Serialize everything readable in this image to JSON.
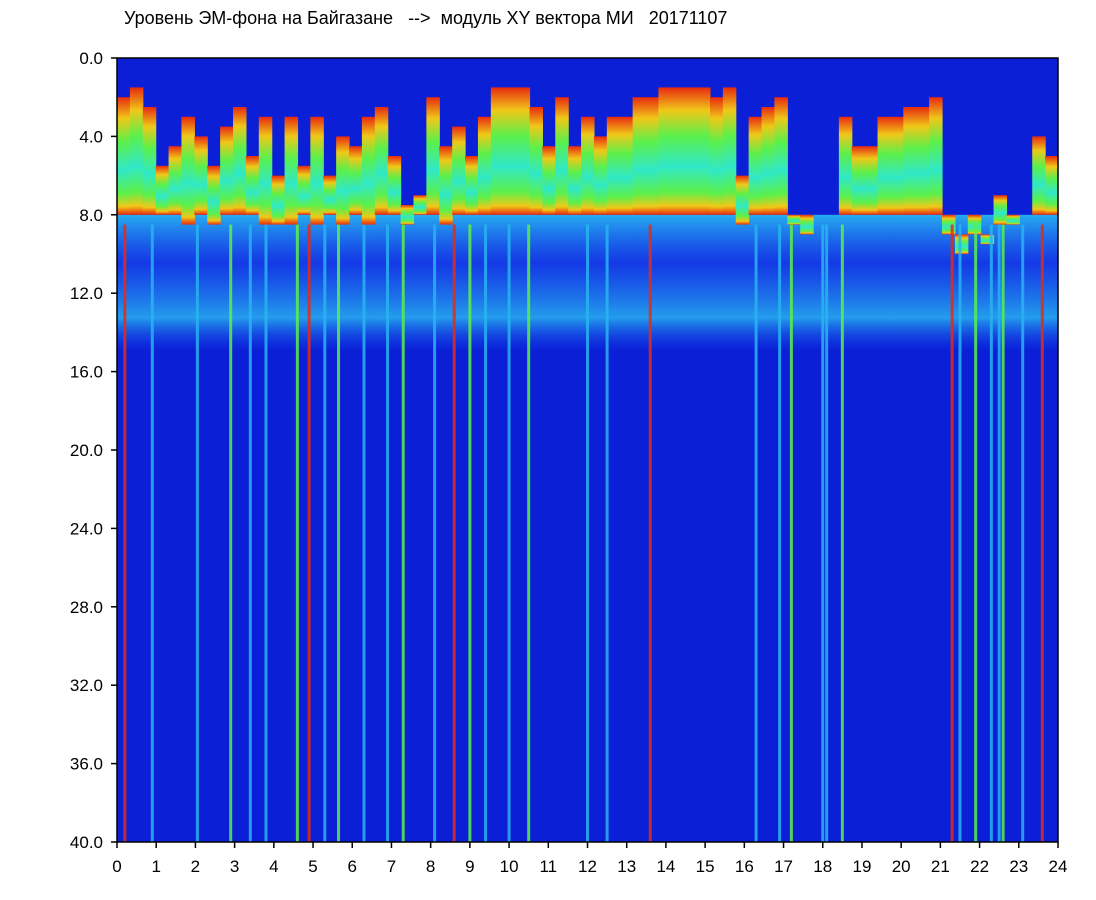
{
  "chart_data": {
    "type": "heatmap",
    "title": "Уровень ЭМ-фона на Байгазане   -->  модуль XY вектора МИ   20171107",
    "xlabel": "",
    "ylabel": "",
    "xlim": [
      0,
      24
    ],
    "ylim": [
      0.0,
      40.0
    ],
    "y_inverted": true,
    "x_ticks": [
      "0",
      "1",
      "2",
      "3",
      "4",
      "5",
      "6",
      "7",
      "8",
      "9",
      "10",
      "11",
      "12",
      "13",
      "14",
      "15",
      "16",
      "17",
      "18",
      "19",
      "20",
      "21",
      "22",
      "23",
      "24"
    ],
    "y_ticks": [
      "0.0",
      "4.0",
      "8.0",
      "12.0",
      "16.0",
      "20.0",
      "24.0",
      "28.0",
      "32.0",
      "36.0",
      "40.0"
    ],
    "colormap": [
      "#0a1fd6",
      "#1a4cf0",
      "#28b4f0",
      "#30e8c8",
      "#5cf04a",
      "#d8f020",
      "#f0c818",
      "#e82a10"
    ],
    "background_color": "#0a1fd6",
    "upper_band_top": [
      2.0,
      1.5,
      2.5,
      5.5,
      4.5,
      3.0,
      4.0,
      5.5,
      3.5,
      2.5,
      5.0,
      3.0,
      6.0,
      3.0,
      5.5,
      3.0,
      6.0,
      4.0,
      4.5,
      3.0,
      2.5,
      5.0,
      7.5,
      7.0,
      2.0,
      4.5,
      3.5,
      5.0,
      3.0,
      1.5,
      1.5,
      1.5,
      2.5,
      4.5,
      2.0,
      4.5,
      3.0,
      4.0,
      3.0,
      3.0,
      2.0,
      2.0,
      1.5,
      1.5,
      1.5,
      1.5,
      2.0,
      1.5,
      6.0,
      3.0,
      2.5,
      2.0,
      8.0,
      8.0,
      10.0,
      12.0,
      3.0,
      4.5,
      4.5,
      3.0,
      3.0,
      2.5,
      2.5,
      2.0,
      8.0,
      9.0,
      8.0,
      9.0,
      7.0,
      8.0,
      9.0,
      4.0,
      5.0
    ],
    "upper_band_bottom": [
      8.0,
      8.0,
      8.0,
      8.0,
      8.0,
      8.5,
      8.0,
      8.5,
      8.0,
      8.0,
      8.0,
      8.5,
      8.5,
      8.5,
      8.0,
      8.5,
      8.0,
      8.5,
      8.0,
      8.5,
      8.0,
      8.0,
      8.5,
      8.0,
      8.0,
      8.5,
      8.0,
      8.0,
      8.0,
      8.0,
      8.0,
      8.0,
      8.0,
      8.0,
      8.0,
      8.0,
      8.0,
      8.0,
      8.0,
      8.0,
      8.0,
      8.0,
      8.0,
      8.0,
      8.0,
      8.0,
      8.0,
      8.0,
      8.5,
      8.0,
      8.0,
      8.0,
      8.5,
      9.0,
      10.0,
      12.0,
      8.0,
      8.0,
      8.0,
      8.0,
      8.0,
      8.0,
      8.0,
      8.0,
      9.0,
      10.0,
      9.0,
      9.5,
      8.5,
      8.5,
      9.0,
      8.0,
      8.0
    ],
    "mid_band": {
      "from": 8.0,
      "to": 15.0,
      "color": "#28b4f0"
    },
    "vertical_streaks": [
      0.2,
      0.9,
      2.05,
      2.9,
      3.4,
      3.8,
      4.6,
      4.9,
      5.3,
      5.65,
      6.3,
      6.9,
      7.3,
      8.1,
      8.6,
      9.0,
      9.4,
      10.0,
      10.5,
      12.0,
      12.5,
      13.6,
      16.3,
      16.9,
      17.2,
      18.0,
      18.1,
      18.5,
      21.3,
      21.5,
      21.9,
      22.3,
      22.5,
      22.6,
      23.1,
      23.6
    ]
  }
}
